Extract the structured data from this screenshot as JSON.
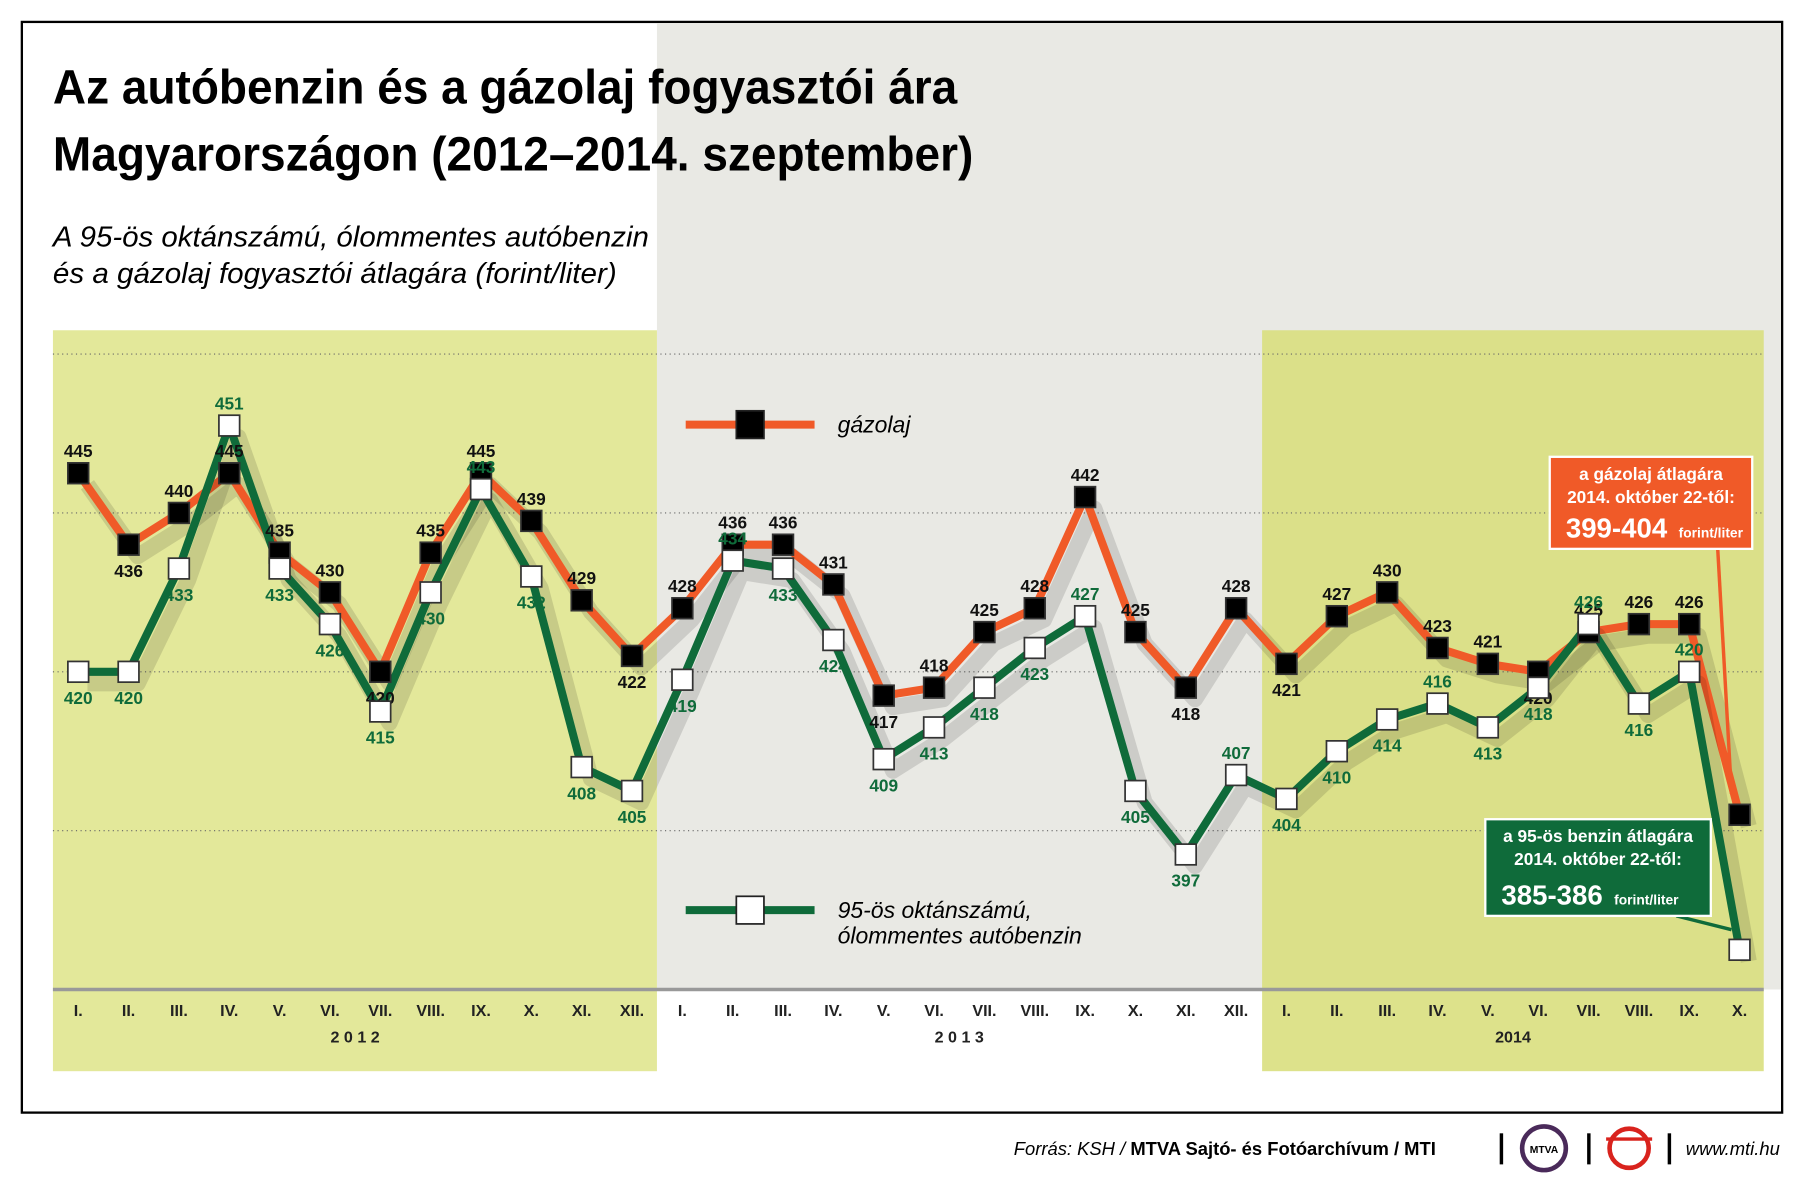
{
  "chart_data": {
    "type": "line",
    "title": [
      "Az autóbenzin és a gázolaj fogyasztói ára",
      "Magyarországon (2012–2014. szeptember)"
    ],
    "subtitle": [
      "A 95-ös oktánszámú, ólommentes autóbenzin",
      "és a gázolaj fogyasztói átlagára (forint/liter)"
    ],
    "categories": [
      "I.",
      "II.",
      "III.",
      "IV.",
      "V.",
      "VI.",
      "VII.",
      "VIII.",
      "IX.",
      "X.",
      "XI.",
      "XII.",
      "I.",
      "II.",
      "III.",
      "IV.",
      "V.",
      "VI.",
      "VII.",
      "VIII.",
      "IX.",
      "X.",
      "XI.",
      "XII.",
      "I.",
      "II.",
      "III.",
      "IV.",
      "V.",
      "VI.",
      "VII.",
      "VIII.",
      "IX.",
      "X."
    ],
    "year_labels": [
      "2 0 1 2",
      "2 0 1 3",
      "2014"
    ],
    "series": [
      {
        "name": "gázolaj",
        "color": "#f05a28",
        "marker": "#000000",
        "values": [
          445,
          436,
          440,
          445,
          435,
          430,
          420,
          435,
          445,
          439,
          429,
          422,
          428,
          436,
          436,
          431,
          417,
          418,
          425,
          428,
          442,
          425,
          418,
          428,
          421,
          427,
          430,
          423,
          421,
          420,
          425,
          426,
          426,
          402
        ],
        "value_labels": [
          "445",
          "436",
          "440",
          "445",
          "435",
          "430",
          "420",
          "435",
          "445",
          "439",
          "429",
          "422",
          "428",
          "436",
          "436",
          "431",
          "417",
          "418",
          "425",
          "428",
          "442",
          "425",
          "418",
          "428",
          "421",
          "427",
          "430",
          "423",
          "421",
          "420",
          "425",
          "426",
          "426",
          null
        ]
      },
      {
        "name": "95-ös oktánszámú,\nólommentes autóbenzin",
        "color": "#0f6b3a",
        "marker": "#ffffff",
        "values": [
          420,
          420,
          433,
          451,
          433,
          426,
          415,
          430,
          443,
          432,
          408,
          405,
          419,
          434,
          433,
          424,
          409,
          413,
          418,
          423,
          427,
          405,
          397,
          407,
          404,
          410,
          414,
          416,
          413,
          418,
          426,
          416,
          420,
          385
        ],
        "value_labels": [
          "420",
          "420",
          "433",
          "451",
          "433",
          "426",
          "415",
          "430",
          "443",
          "432",
          "408",
          "405",
          "419",
          "434",
          "433",
          "424",
          "409",
          "413",
          "418",
          "423",
          "427",
          "405",
          "397",
          "407",
          "404",
          "410",
          "414",
          "416",
          "413",
          "418",
          "426",
          "416",
          "420",
          null
        ]
      }
    ],
    "ylim": [
      380,
      463
    ],
    "yticks": [
      400,
      420,
      440,
      460
    ],
    "grid": true,
    "annotations": [
      {
        "lines": [
          "a gázolaj átlagára",
          "2014. október 22-től:"
        ],
        "value": "399-404",
        "unit": "forint/liter",
        "color": "#f05a28"
      },
      {
        "lines": [
          "a 95-ös benzin átlagára",
          "2014. október 22-től:"
        ],
        "value": "385-386",
        "unit": "forint/liter",
        "color": "#0f6b3a"
      }
    ],
    "source": {
      "prefix": "Forrás: KSH /",
      "agency": "MTVA Sajtó- és Fotóarchívum / MTI",
      "logo": "MTVA",
      "url": "www.mti.hu"
    }
  }
}
